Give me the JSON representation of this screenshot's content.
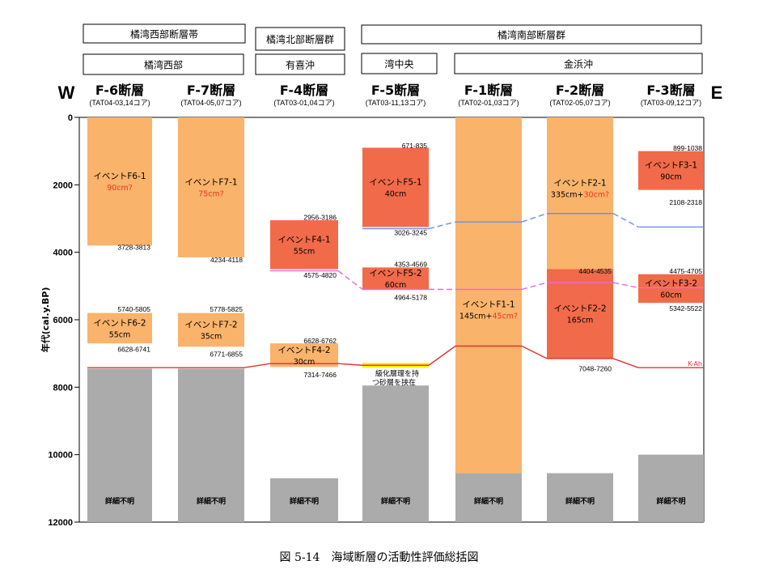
{
  "chart_data": {
    "type": "table",
    "ylabel": "年代(cal.y.BP)",
    "ylim": [
      0,
      12000
    ],
    "yticks": [
      0,
      2000,
      4000,
      6000,
      8000,
      10000,
      12000
    ],
    "west_label": "W",
    "east_label": "E",
    "caption": "図 5-14　海域断層の活動性評価総括図",
    "group_headers": [
      "橘湾西部断層帯",
      "橘湾北部断層群",
      "橘湾南部断層群"
    ],
    "area_headers": [
      "橘湾西部",
      "有喜沖",
      "湾中央",
      "金浜沖"
    ],
    "faults": [
      {
        "name": "F-6断層",
        "cores": "(TAT04-03,14コア)"
      },
      {
        "name": "F-7断層",
        "cores": "(TAT04-05,07コア)"
      },
      {
        "name": "F-4断層",
        "cores": "(TAT03-01,04コア)"
      },
      {
        "name": "F-5断層",
        "cores": "(TAT03-11,13コア)"
      },
      {
        "name": "F-1断層",
        "cores": "(TAT02-01,03コア)"
      },
      {
        "name": "F-2断層",
        "cores": "(TAT02-05,07コア)"
      },
      {
        "name": "F-3断層",
        "cores": "(TAT03-09,12コア)"
      }
    ],
    "colors": {
      "event_light": "#f9b36b",
      "event_dark": "#f16a4a",
      "unknown": "#ababab",
      "kah_line": "#e8312a",
      "blue_line": "#6b8fe6",
      "pink_line": "#ee66dd",
      "yellow_band": "#fff200",
      "red_text": "#ee3322"
    },
    "events": [
      {
        "fault": 0,
        "from": 0,
        "to": 3800,
        "style": "light",
        "label": "イベントF6-1",
        "amount": "90cm?",
        "amount_red": "90cm?"
      },
      {
        "fault": 0,
        "from": 5800,
        "to": 6700,
        "style": "light",
        "label": "イベントF6-2",
        "amount": "55cm"
      },
      {
        "fault": 1,
        "from": 0,
        "to": 4150,
        "style": "light",
        "label": "イベントF7-1",
        "amount": "75cm?",
        "amount_red": "75cm?"
      },
      {
        "fault": 1,
        "from": 5800,
        "to": 6800,
        "style": "light",
        "label": "イベントF7-2",
        "amount": "35cm"
      },
      {
        "fault": 2,
        "from": 3050,
        "to": 4500,
        "style": "dark",
        "label": "イベントF4-1",
        "amount": "55cm"
      },
      {
        "fault": 2,
        "from": 6700,
        "to": 7400,
        "style": "light",
        "label": "イベントF4-2",
        "amount": "30cm"
      },
      {
        "fault": 3,
        "from": 900,
        "to": 3250,
        "style": "dark",
        "label": "イベントF5-1",
        "amount": "40cm"
      },
      {
        "fault": 3,
        "from": 4450,
        "to": 5100,
        "style": "dark",
        "label": "イベントF5-2",
        "amount": "60cm"
      },
      {
        "fault": 4,
        "from": 0,
        "to": 10550,
        "style": "light",
        "label": "イベントF1-1",
        "amount": "145cm+",
        "amount_red": "45cm?"
      },
      {
        "fault": 5,
        "from": 0,
        "to": 7150,
        "style": "light",
        "label": "イベントF2-1",
        "amount": "335cm+",
        "amount_red": "30cm?"
      },
      {
        "fault": 5,
        "from": 4500,
        "to": 7150,
        "style": "dark",
        "label": "イベントF2-2",
        "amount": "165cm"
      },
      {
        "fault": 6,
        "from": 1000,
        "to": 2150,
        "style": "dark",
        "label": "イベントF3-1",
        "amount": "90cm"
      },
      {
        "fault": 6,
        "from": 4650,
        "to": 5500,
        "style": "dark",
        "label": "イベントF3-2",
        "amount": "60cm"
      }
    ],
    "unknown_zones": [
      {
        "fault": 0,
        "from": 7450,
        "label": "詳細不明"
      },
      {
        "fault": 1,
        "from": 7450,
        "label": "詳細不明"
      },
      {
        "fault": 2,
        "from": 10700,
        "label": "詳細不明"
      },
      {
        "fault": 3,
        "from": 7950,
        "label": "詳細不明"
      },
      {
        "fault": 4,
        "from": 10550,
        "label": "詳細不明"
      },
      {
        "fault": 5,
        "from": 10550,
        "label": "詳細不明"
      },
      {
        "fault": 6,
        "from": 10000,
        "label": "詳細不明"
      }
    ],
    "age_labels": [
      {
        "fault": 0,
        "age": 3830,
        "text": "3728-3813"
      },
      {
        "fault": 0,
        "age": 5660,
        "text": "5740-5805"
      },
      {
        "fault": 0,
        "age": 6850,
        "text": "6628-6741"
      },
      {
        "fault": 1,
        "age": 4200,
        "text": "4234-4118"
      },
      {
        "fault": 1,
        "age": 5660,
        "text": "5778-5825"
      },
      {
        "fault": 1,
        "age": 6990,
        "text": "6771-6855"
      },
      {
        "fault": 2,
        "age": 2940,
        "text": "2956-3186"
      },
      {
        "fault": 2,
        "age": 4650,
        "text": "4575-4820"
      },
      {
        "fault": 2,
        "age": 6600,
        "text": "6628-6762"
      },
      {
        "fault": 2,
        "age": 7610,
        "text": "7314-7466"
      },
      {
        "fault": 3,
        "age": 820,
        "text": "671-835"
      },
      {
        "fault": 3,
        "age": 3390,
        "text": "3026-3245"
      },
      {
        "fault": 3,
        "age": 4330,
        "text": "4353-4569"
      },
      {
        "fault": 3,
        "age": 5310,
        "text": "4964-5178"
      },
      {
        "fault": 5,
        "age": 4530,
        "text": "4404-4535"
      },
      {
        "fault": 5,
        "age": 7430,
        "text": "7048-7260"
      },
      {
        "fault": 6,
        "age": 890,
        "text": "899-1038"
      },
      {
        "fault": 6,
        "age": 2500,
        "text": "2108-2318"
      },
      {
        "fault": 6,
        "age": 4540,
        "text": "4475-4705"
      },
      {
        "fault": 6,
        "age": 5640,
        "text": "5342-5522"
      }
    ],
    "annotations": {
      "f5_note": "級化層理を持つ砂層を挟在",
      "kah": "K-Ah"
    },
    "horizons": {
      "kah": [
        7420,
        7420,
        7300,
        7350,
        6780,
        7150,
        7420
      ],
      "blue": [
        null,
        null,
        null,
        3300,
        3100,
        2850,
        3250
      ],
      "pink": [
        null,
        null,
        4550,
        5100,
        5100,
        4900,
        5050
      ]
    }
  }
}
